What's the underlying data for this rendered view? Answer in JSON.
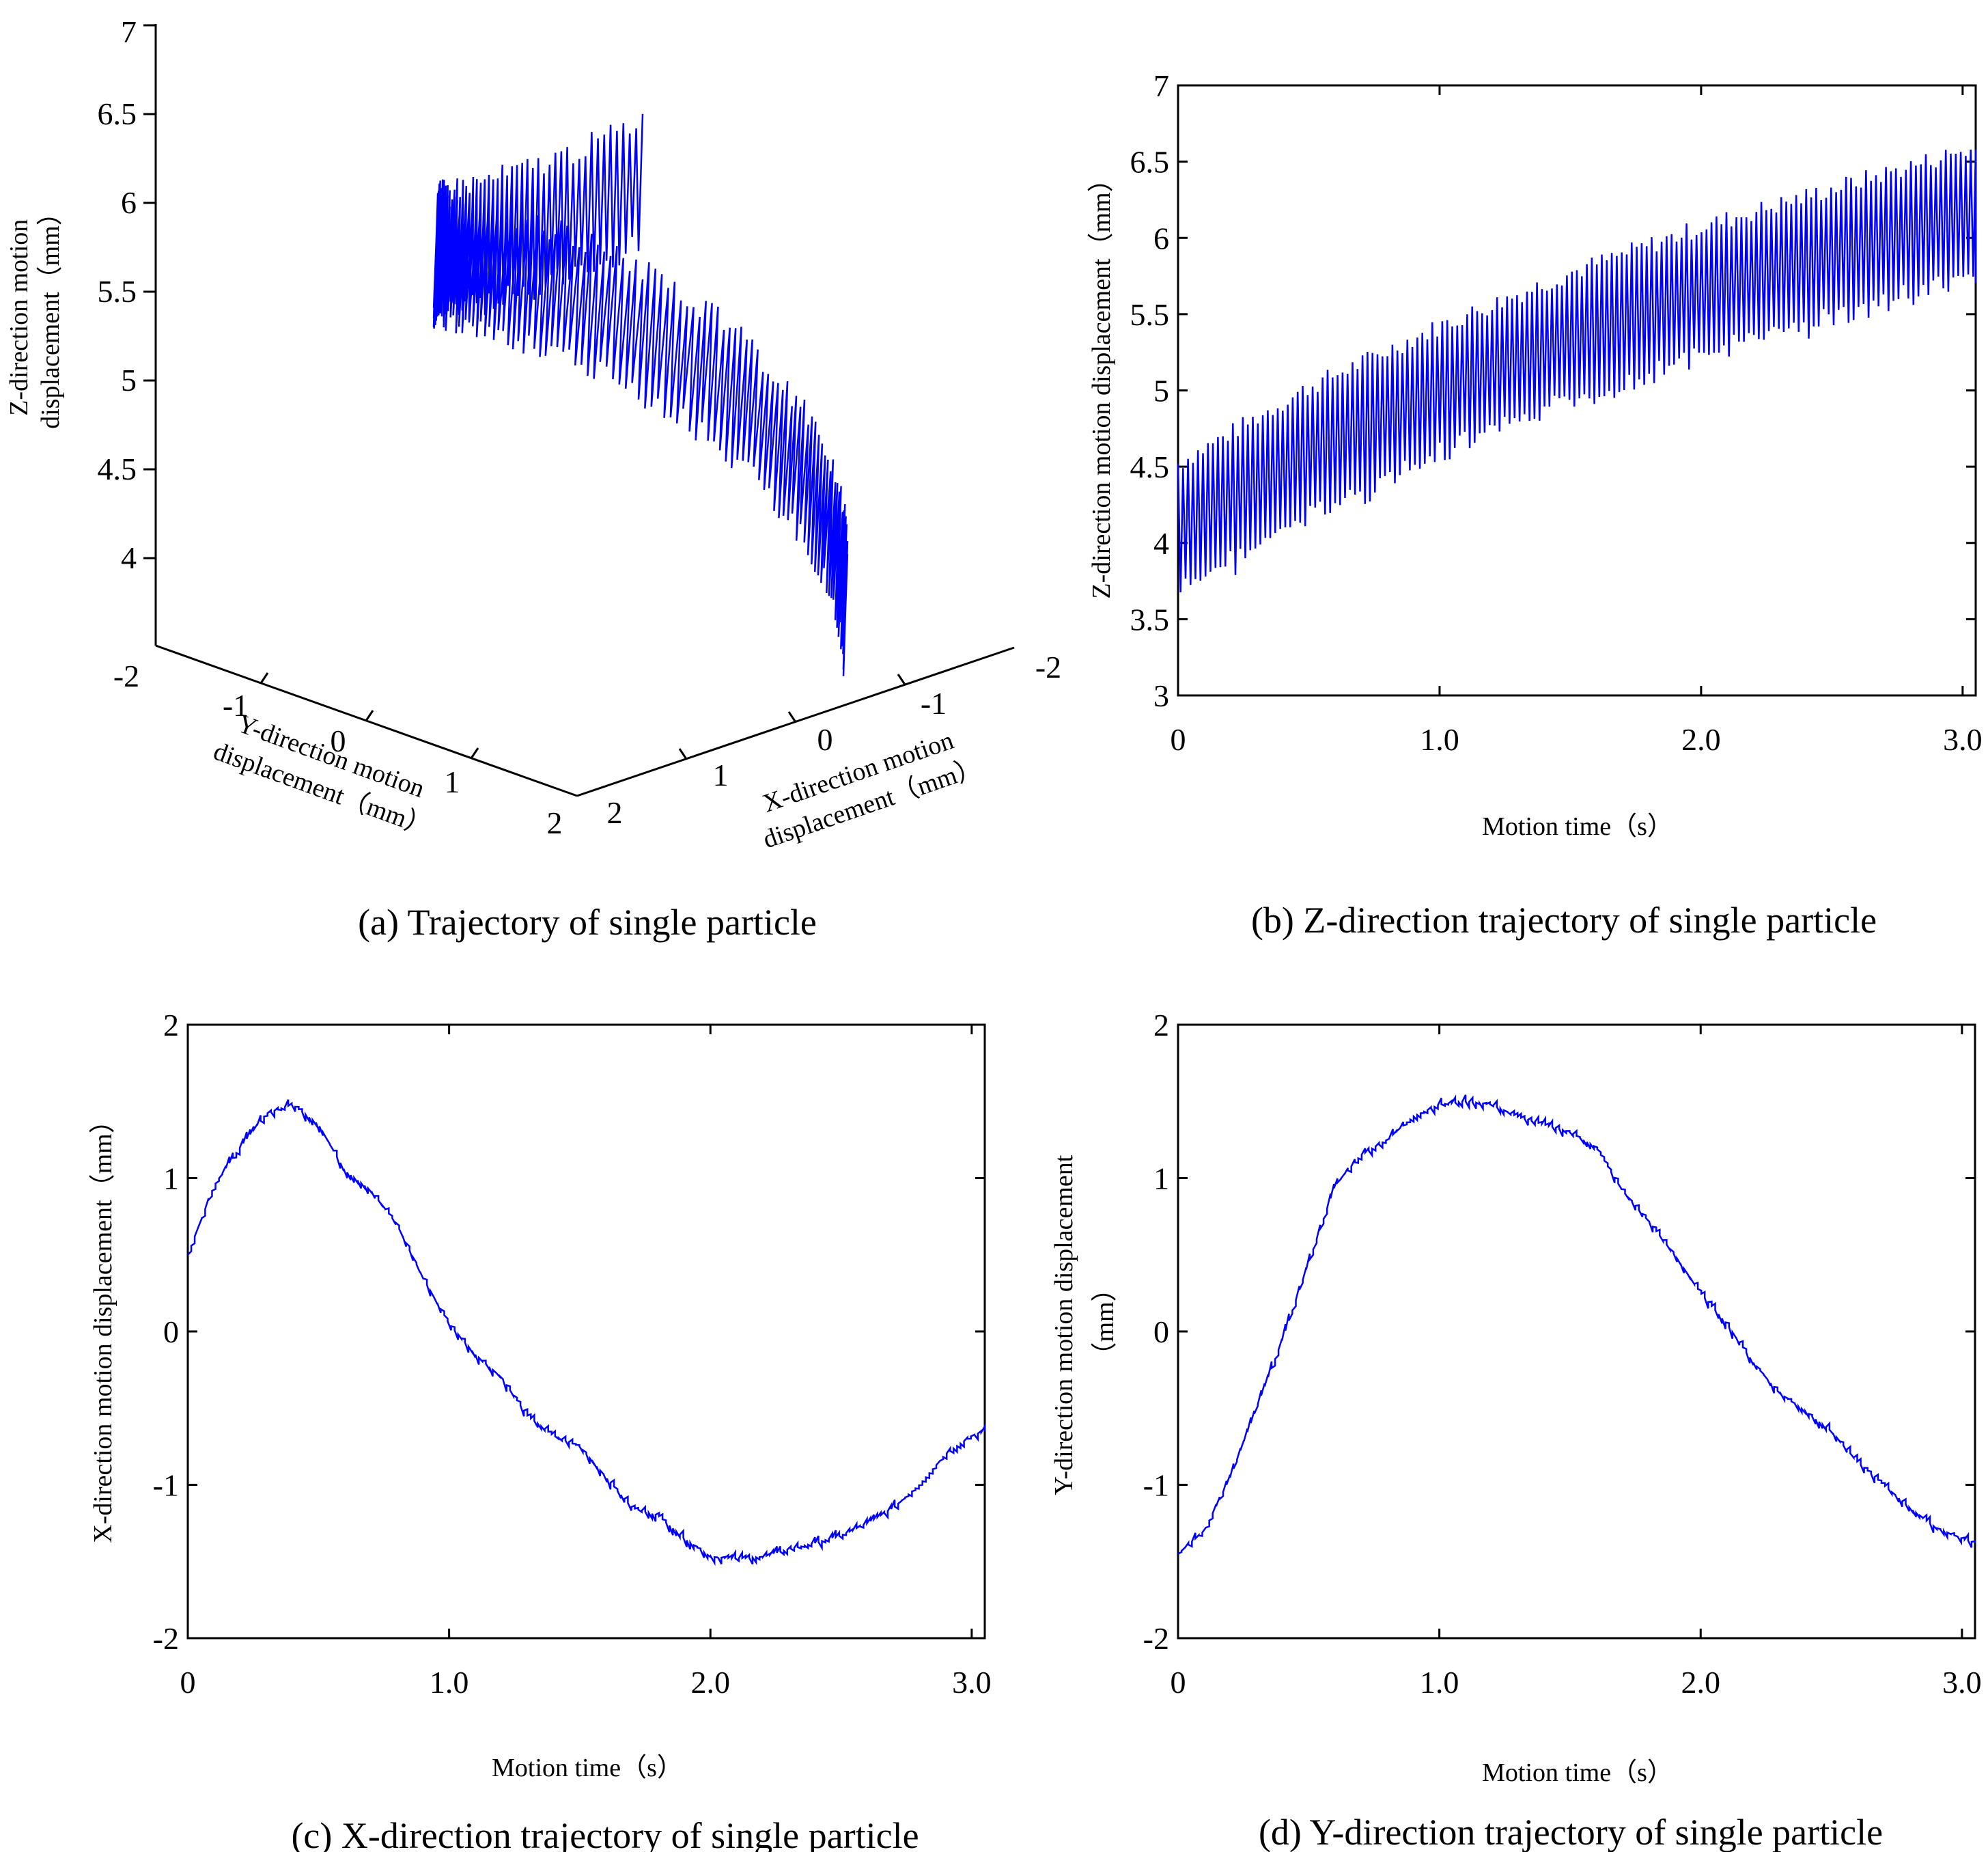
{
  "line_color": "#0000ff",
  "chart_data": [
    {
      "id": "a",
      "type": "scatter3d",
      "caption": "(a) Trajectory of single particle",
      "zlabel_lines": [
        "Z-direction motion",
        "displacement（mm）"
      ],
      "ylabel_lines": [
        "Y-direction motion",
        "displacement（mm）"
      ],
      "xlabel_lines": [
        "X-direction motion",
        "displacement（mm）"
      ],
      "zticks": [
        "4",
        "4.5",
        "5",
        "5.5",
        "6",
        "6.5",
        "7"
      ],
      "yticks": [
        "-2",
        "-1",
        "0",
        "1",
        "2"
      ],
      "xticks": [
        "-2",
        "-1",
        "0",
        "1",
        "2"
      ],
      "zlim": [
        3.5,
        7
      ],
      "helix": {
        "radius": 1.5,
        "z_start": 3.7,
        "z_end": 6.7,
        "z_amplitude": 0.35,
        "turn_fraction": 0.75,
        "cycles": 150
      }
    },
    {
      "id": "b",
      "type": "line",
      "caption": "(b) Z-direction trajectory of single particle",
      "xlabel": "Motion time（s）",
      "ylabel": "Z-direction motion displacement（mm）",
      "xlim": [
        0,
        3.05
      ],
      "ylim": [
        3,
        7
      ],
      "xticks": [
        0,
        1.0,
        2.0,
        3.0
      ],
      "xtick_labels": [
        "0",
        "1.0",
        "2.0",
        "3.0"
      ],
      "yticks": [
        3,
        3.5,
        4,
        4.5,
        5,
        5.5,
        6,
        6.5,
        7
      ],
      "ytick_labels": [
        "3",
        "3.5",
        "4",
        "4.5",
        "5",
        "5.5",
        "6",
        "6.5",
        "7"
      ],
      "center_t": [
        0,
        0.5,
        1.0,
        1.5,
        2.0,
        2.5,
        3.0
      ],
      "center_z": [
        4.1,
        4.6,
        5.0,
        5.35,
        5.65,
        5.9,
        6.15
      ],
      "amplitude": 0.42,
      "cycles": 160
    },
    {
      "id": "c",
      "type": "line",
      "caption": "(c) X-direction trajectory of single particle",
      "xlabel": "Motion time（s）",
      "ylabel": "X-direction motion displacement（mm）",
      "xlim": [
        0,
        3.05
      ],
      "ylim": [
        -2,
        2
      ],
      "xticks": [
        0,
        1.0,
        2.0,
        3.0
      ],
      "xtick_labels": [
        "0",
        "1.0",
        "2.0",
        "3.0"
      ],
      "yticks": [
        -2,
        -1,
        0,
        1,
        2
      ],
      "ytick_labels": [
        "-2",
        "-1",
        "0",
        "1",
        "2"
      ],
      "t": [
        0,
        0.1,
        0.2,
        0.3,
        0.4,
        0.5,
        0.6,
        0.7,
        0.8,
        0.9,
        1.0,
        1.1,
        1.2,
        1.3,
        1.4,
        1.5,
        1.6,
        1.7,
        1.8,
        1.9,
        2.0,
        2.1,
        2.2,
        2.3,
        2.4,
        2.5,
        2.6,
        2.7,
        2.8,
        2.9,
        3.0,
        3.05
      ],
      "values": [
        0.5,
        0.95,
        1.2,
        1.42,
        1.48,
        1.35,
        1.05,
        0.92,
        0.7,
        0.35,
        0.05,
        -0.15,
        -0.3,
        -0.55,
        -0.68,
        -0.75,
        -0.95,
        -1.15,
        -1.2,
        -1.35,
        -1.47,
        -1.48,
        -1.47,
        -1.42,
        -1.38,
        -1.33,
        -1.25,
        -1.15,
        -1.0,
        -0.8,
        -0.68,
        -0.65
      ]
    },
    {
      "id": "d",
      "type": "line",
      "caption": "(d) Y-direction trajectory of single particle",
      "xlabel": "Motion time（s）",
      "ylabel_lines": [
        "Y-direction motion displacement",
        "（mm）"
      ],
      "xlim": [
        0,
        3.05
      ],
      "ylim": [
        -2,
        2
      ],
      "xticks": [
        0,
        1.0,
        2.0,
        3.0
      ],
      "xtick_labels": [
        "0",
        "1.0",
        "2.0",
        "3.0"
      ],
      "yticks": [
        -2,
        -1,
        0,
        1,
        2
      ],
      "ytick_labels": [
        "-2",
        "-1",
        "0",
        "1",
        "2"
      ],
      "t": [
        0,
        0.1,
        0.2,
        0.3,
        0.4,
        0.5,
        0.6,
        0.7,
        0.8,
        0.9,
        1.0,
        1.1,
        1.2,
        1.3,
        1.4,
        1.5,
        1.6,
        1.7,
        1.8,
        1.9,
        2.0,
        2.1,
        2.2,
        2.3,
        2.4,
        2.5,
        2.6,
        2.7,
        2.8,
        2.9,
        3.0,
        3.05
      ],
      "values": [
        -1.45,
        -1.3,
        -0.95,
        -0.5,
        -0.05,
        0.45,
        0.95,
        1.15,
        1.25,
        1.4,
        1.48,
        1.5,
        1.48,
        1.4,
        1.35,
        1.3,
        1.2,
        0.92,
        0.72,
        0.5,
        0.25,
        0.05,
        -0.2,
        -0.4,
        -0.52,
        -0.65,
        -0.85,
        -1.0,
        -1.15,
        -1.28,
        -1.35,
        -1.38
      ]
    }
  ]
}
